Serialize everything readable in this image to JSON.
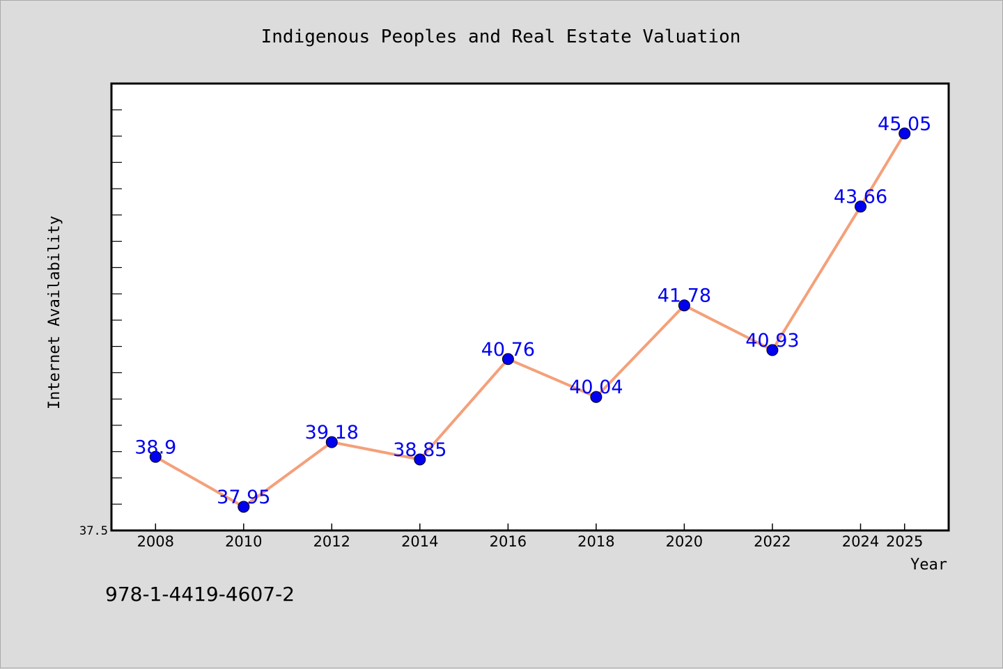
{
  "chart_data": {
    "type": "line",
    "title": "Indigenous Peoples and Real Estate Valuation",
    "xlabel": "Year",
    "ylabel": "Internet Availability",
    "x": [
      "2008",
      "2010",
      "2012",
      "2014",
      "2016",
      "2018",
      "2020",
      "2022",
      "2024",
      "2025"
    ],
    "series": [
      {
        "values": [
          38.9,
          37.95,
          39.18,
          38.85,
          40.76,
          40.04,
          41.78,
          40.93,
          43.66,
          45.05
        ]
      }
    ],
    "data_labels": [
      "38.9",
      "37.95",
      "39.18",
      "38.85",
      "40.76",
      "40.04",
      "41.78",
      "40.93",
      "43.66",
      "45.05"
    ],
    "ylim": [
      37.5,
      46.0
    ],
    "yticklabels": [
      "37.5"
    ],
    "grid": false,
    "legend": "none",
    "line_color": "#f4a07a",
    "marker_color": "#0000ee",
    "label_color": "#0000ee",
    "isbn": "978-1-4419-4607-2"
  }
}
